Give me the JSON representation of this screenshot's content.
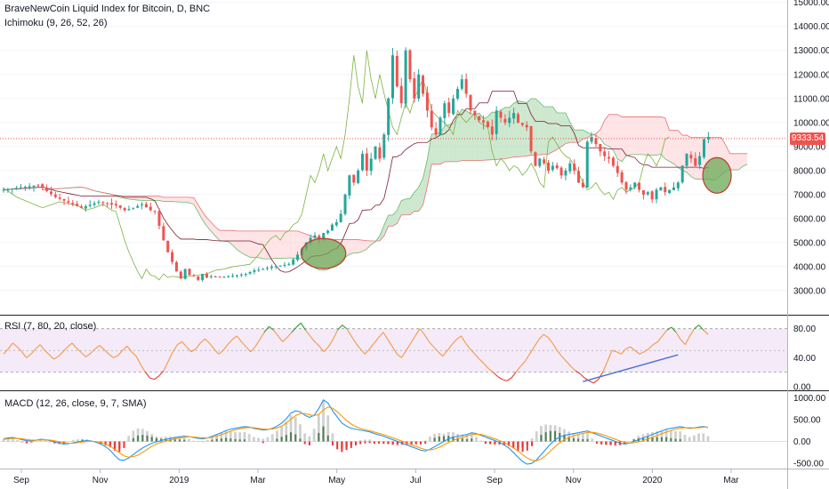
{
  "header": {
    "title": "BraveNewCoin Liquid Index for Bitcoin, D, BNC",
    "ichimoku_label": "Ichimoku (9, 26, 52, 26)",
    "rsi_label": "RSI (7, 80, 20, close)",
    "macd_label": "MACD (12, 26, close, 9, 7, SMA)"
  },
  "colors": {
    "up": "#26a69a",
    "down": "#ef5350",
    "cloud_bull": "#a5d6a7",
    "cloud_bear": "#ffcdd2",
    "rsi": "#f09a4a",
    "rsi_band": "#f3e5f5",
    "macd_line": "#2196f3",
    "signal_line": "#ff9800",
    "hist": "#c8c8c8",
    "trendline": "#4a72d6",
    "ellipse_fill": "#6aaa56",
    "ellipse_stroke": "#c0392b"
  },
  "chart_data": [
    {
      "type": "candlestick",
      "title": "BraveNewCoin Liquid Index for Bitcoin, D, BNC",
      "indicator": "Ichimoku (9, 26, 52, 26)",
      "x_ticks": [
        "Sep",
        "Nov",
        "2019",
        "Mar",
        "May",
        "Jul",
        "Sep",
        "Nov",
        "2020",
        "Mar"
      ],
      "y_ticks": [
        "3000.00",
        "4000.00",
        "5000.00",
        "6000.00",
        "7000.00",
        "8000.00",
        "9000.00",
        "10000.00",
        "11000.00",
        "12000.00",
        "13000.00",
        "14000.00",
        "15000.00"
      ],
      "ylim": [
        2000,
        15100
      ],
      "last_price": "9333.54",
      "price_path": [
        [
          0,
          7200
        ],
        [
          8,
          7400
        ],
        [
          12,
          6900
        ],
        [
          18,
          6450
        ],
        [
          22,
          6700
        ],
        [
          26,
          6550
        ],
        [
          28,
          6350
        ],
        [
          30,
          6450
        ],
        [
          32,
          6600
        ],
        [
          34,
          6350
        ],
        [
          35,
          6300
        ],
        [
          36,
          5700
        ],
        [
          37,
          5100
        ],
        [
          38,
          4600
        ],
        [
          39,
          4200
        ],
        [
          40,
          3800
        ],
        [
          41,
          3500
        ],
        [
          42,
          3900
        ],
        [
          43,
          3650
        ],
        [
          44,
          3600
        ],
        [
          45,
          3450
        ],
        [
          46,
          3700
        ],
        [
          47,
          3550
        ],
        [
          48,
          3600
        ],
        [
          50,
          3550
        ],
        [
          52,
          3600
        ],
        [
          54,
          3650
        ],
        [
          56,
          3700
        ],
        [
          58,
          3850
        ],
        [
          60,
          3900
        ],
        [
          62,
          4000
        ],
        [
          64,
          4050
        ],
        [
          66,
          4100
        ],
        [
          68,
          4500
        ],
        [
          70,
          5000
        ],
        [
          71,
          5200
        ],
        [
          72,
          5300
        ],
        [
          73,
          5100
        ],
        [
          74,
          5400
        ],
        [
          75,
          5500
        ],
        [
          76,
          5750
        ],
        [
          77,
          5850
        ],
        [
          78,
          6200
        ],
        [
          79,
          7000
        ],
        [
          80,
          7800
        ],
        [
          81,
          7500
        ],
        [
          82,
          8000
        ],
        [
          83,
          8700
        ],
        [
          84,
          8000
        ],
        [
          85,
          8500
        ],
        [
          86,
          9000
        ],
        [
          87,
          8500
        ],
        [
          88,
          9500
        ],
        [
          89,
          11000
        ],
        [
          90,
          12800
        ],
        [
          91,
          11500
        ],
        [
          92,
          10800
        ],
        [
          93,
          13000
        ],
        [
          94,
          11800
        ],
        [
          95,
          11000
        ],
        [
          96,
          12000
        ],
        [
          97,
          11200
        ],
        [
          98,
          10500
        ],
        [
          99,
          9800
        ],
        [
          100,
          9500
        ],
        [
          101,
          10200
        ],
        [
          102,
          10800
        ],
        [
          103,
          10400
        ],
        [
          104,
          11000
        ],
        [
          105,
          11400
        ],
        [
          106,
          11800
        ],
        [
          107,
          11200
        ],
        [
          108,
          10500
        ],
        [
          109,
          10300
        ],
        [
          110,
          10100
        ],
        [
          111,
          10000
        ],
        [
          112,
          9800
        ],
        [
          113,
          9500
        ],
        [
          114,
          10500
        ],
        [
          115,
          10200
        ],
        [
          116,
          10000
        ],
        [
          117,
          10200
        ],
        [
          118,
          10400
        ],
        [
          119,
          10000
        ],
        [
          120,
          9900
        ],
        [
          121,
          9800
        ],
        [
          122,
          8800
        ],
        [
          123,
          8200
        ],
        [
          124,
          8500
        ],
        [
          125,
          8300
        ],
        [
          126,
          8000
        ],
        [
          127,
          8200
        ],
        [
          128,
          8100
        ],
        [
          129,
          7800
        ],
        [
          130,
          8000
        ],
        [
          131,
          8300
        ],
        [
          132,
          8000
        ],
        [
          133,
          7500
        ],
        [
          134,
          7300
        ],
        [
          135,
          9200
        ],
        [
          136,
          9400
        ],
        [
          137,
          9100
        ],
        [
          138,
          8800
        ],
        [
          139,
          8600
        ],
        [
          140,
          8500
        ],
        [
          141,
          8200
        ],
        [
          142,
          7900
        ],
        [
          143,
          7500
        ],
        [
          144,
          7200
        ],
        [
          145,
          7300
        ],
        [
          146,
          7500
        ],
        [
          147,
          7200
        ],
        [
          148,
          7000
        ],
        [
          149,
          7100
        ],
        [
          150,
          6800
        ],
        [
          151,
          7200
        ],
        [
          152,
          7300
        ],
        [
          153,
          7100
        ],
        [
          154,
          7200
        ],
        [
          155,
          7300
        ],
        [
          156,
          7500
        ],
        [
          157,
          8200
        ],
        [
          158,
          8700
        ],
        [
          159,
          8500
        ],
        [
          160,
          8200
        ],
        [
          161,
          8600
        ],
        [
          162,
          9300
        ],
        [
          163,
          9400
        ]
      ],
      "annotations": [
        {
          "shape": "ellipse",
          "label": "",
          "x": 74,
          "y": 4550
        },
        {
          "shape": "ellipse",
          "label": "",
          "x": 165,
          "y": 7800
        }
      ]
    },
    {
      "type": "line",
      "title": "RSI (7, 80, 20, close)",
      "y_ticks": [
        "0.00",
        "40.00",
        "80.00"
      ],
      "ylim": [
        -5,
        98
      ],
      "bands": [
        20,
        80
      ],
      "midline": 50,
      "trendline": {
        "from": [
          134,
          7
        ],
        "to": [
          156,
          44
        ]
      },
      "values": [
        45,
        52,
        60,
        55,
        48,
        40,
        45,
        52,
        58,
        50,
        44,
        38,
        42,
        48,
        55,
        60,
        53,
        47,
        41,
        46,
        52,
        57,
        51,
        45,
        40,
        43,
        50,
        56,
        48,
        42,
        30,
        20,
        12,
        10,
        15,
        22,
        35,
        48,
        58,
        62,
        55,
        48,
        52,
        60,
        66,
        60,
        52,
        45,
        50,
        58,
        65,
        70,
        62,
        55,
        48,
        55,
        65,
        75,
        83,
        78,
        70,
        62,
        68,
        75,
        82,
        88,
        78,
        70,
        62,
        56,
        48,
        55,
        65,
        78,
        85,
        80,
        70,
        60,
        52,
        45,
        52,
        60,
        68,
        75,
        65,
        55,
        45,
        40,
        50,
        60,
        70,
        80,
        72,
        62,
        55,
        48,
        42,
        50,
        58,
        65,
        70,
        60,
        52,
        45,
        38,
        32,
        25,
        20,
        14,
        10,
        8,
        12,
        20,
        28,
        35,
        45,
        55,
        65,
        72,
        68,
        60,
        50,
        42,
        35,
        28,
        22,
        18,
        12,
        8,
        5,
        10,
        20,
        35,
        50,
        48,
        45,
        52,
        55,
        50,
        45,
        48,
        52,
        58,
        62,
        70,
        78,
        82,
        75,
        65,
        58,
        70,
        80,
        85,
        78,
        72
      ]
    },
    {
      "type": "bar",
      "title": "MACD (12, 26, close, 9, 7, SMA)",
      "y_ticks": [
        "-500.00",
        "0.00",
        "500.00",
        "1000.00"
      ],
      "ylim": [
        -620,
        1150
      ],
      "macd_values": [
        60,
        80,
        90,
        70,
        40,
        20,
        10,
        30,
        50,
        40,
        20,
        -10,
        -40,
        -60,
        -50,
        -30,
        -10,
        10,
        20,
        10,
        -20,
        -60,
        -120,
        -200,
        -320,
        -420,
        -430,
        -380,
        -300,
        -220,
        -150,
        -90,
        -40,
        -10,
        20,
        50,
        70,
        90,
        110,
        120,
        110,
        90,
        70,
        60,
        80,
        120,
        160,
        200,
        250,
        280,
        300,
        320,
        340,
        330,
        300,
        280,
        260,
        270,
        300,
        350,
        420,
        520,
        650,
        700,
        680,
        600,
        550,
        600,
        750,
        950,
        880,
        700,
        560,
        420,
        350,
        300,
        280,
        260,
        240,
        220,
        180,
        150,
        120,
        80,
        40,
        0,
        -40,
        -80,
        -120,
        -160,
        -200,
        -220,
        -180,
        -120,
        -60,
        0,
        60,
        100,
        120,
        140,
        160,
        200,
        180,
        140,
        100,
        60,
        20,
        -20,
        -80,
        -150,
        -250,
        -360,
        -460,
        -520,
        -500,
        -420,
        -300,
        -180,
        -60,
        40,
        100,
        140,
        160,
        180,
        200,
        220,
        240,
        200,
        160,
        120,
        80,
        40,
        0,
        -40,
        -60,
        -40,
        0,
        40,
        80,
        120,
        160,
        200,
        240,
        280,
        300,
        320,
        340,
        320,
        300,
        310,
        330,
        340,
        320
      ],
      "signal_values": [
        50,
        60,
        70,
        70,
        60,
        45,
        30,
        30,
        35,
        38,
        32,
        15,
        -5,
        -25,
        -40,
        -40,
        -30,
        -15,
        0,
        5,
        -5,
        -25,
        -60,
        -110,
        -180,
        -260,
        -330,
        -360,
        -350,
        -310,
        -250,
        -180,
        -110,
        -60,
        -20,
        10,
        35,
        60,
        80,
        95,
        105,
        100,
        90,
        80,
        80,
        95,
        120,
        155,
        195,
        235,
        265,
        290,
        310,
        320,
        315,
        300,
        285,
        280,
        285,
        310,
        350,
        420,
        510,
        590,
        640,
        640,
        610,
        590,
        620,
        720,
        790,
        760,
        680,
        580,
        480,
        400,
        340,
        300,
        270,
        245,
        215,
        185,
        155,
        120,
        85,
        45,
        5,
        -35,
        -75,
        -115,
        -155,
        -185,
        -195,
        -175,
        -135,
        -80,
        -25,
        25,
        65,
        95,
        125,
        155,
        170,
        160,
        135,
        100,
        60,
        20,
        -25,
        -80,
        -145,
        -220,
        -300,
        -380,
        -430,
        -440,
        -400,
        -320,
        -220,
        -120,
        -30,
        40,
        90,
        130,
        160,
        185,
        205,
        210,
        195,
        165,
        130,
        90,
        50,
        10,
        -20,
        -35,
        -30,
        -10,
        20,
        55,
        95,
        135,
        175,
        215,
        250,
        280,
        305,
        315,
        315,
        310,
        315,
        325,
        330
      ]
    }
  ]
}
